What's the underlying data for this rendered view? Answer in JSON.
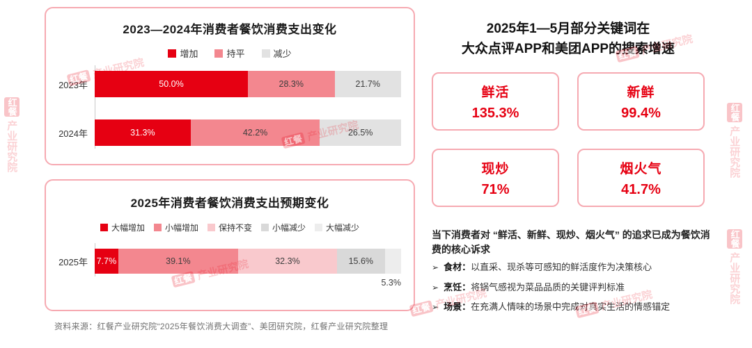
{
  "chart_data": [
    {
      "type": "bar",
      "stacked": true,
      "orientation": "horizontal",
      "title": "2023—2024年消费者餐饮消费支出变化",
      "unit": "%",
      "xlim": [
        0,
        100
      ],
      "legend_position": "top",
      "legend": [
        {
          "label": "增加",
          "color": "#e60012",
          "label_color": "#ffffff"
        },
        {
          "label": "持平",
          "color": "#f3878f",
          "label_color": "#3d3d3d"
        },
        {
          "label": "减少",
          "color": "#e2e2e2",
          "label_color": "#3d3d3d"
        }
      ],
      "rows": [
        {
          "category": "2023年",
          "values": [
            50.0,
            28.3,
            21.7
          ],
          "labels": [
            "50.0%",
            "28.3%",
            "21.7%"
          ]
        },
        {
          "category": "2024年",
          "values": [
            31.3,
            42.2,
            26.5
          ],
          "labels": [
            "31.3%",
            "42.2%",
            "26.5%"
          ]
        }
      ]
    },
    {
      "type": "bar",
      "stacked": true,
      "orientation": "horizontal",
      "title": "2025年消费者餐饮消费支出预期变化",
      "unit": "%",
      "xlim": [
        0,
        100
      ],
      "legend_position": "top",
      "legend": [
        {
          "label": "大幅增加",
          "color": "#e60012",
          "label_color": "#ffffff"
        },
        {
          "label": "小幅增加",
          "color": "#f3878f",
          "label_color": "#3d3d3d"
        },
        {
          "label": "保持不变",
          "color": "#f9c9cd",
          "label_color": "#3d3d3d"
        },
        {
          "label": "小幅减少",
          "color": "#d9d9d9",
          "label_color": "#3d3d3d"
        },
        {
          "label": "大幅减少",
          "color": "#ededed",
          "label_color": "#3d3d3d"
        }
      ],
      "rows": [
        {
          "category": "2025年",
          "values": [
            7.7,
            39.1,
            32.3,
            15.6,
            5.3
          ],
          "labels": [
            "7.7%",
            "39.1%",
            "32.3%",
            "15.6%",
            "5.3%"
          ],
          "label_below": [
            4
          ]
        }
      ]
    }
  ],
  "keywords": {
    "title_line1": "2025年1—5月部分关键词在",
    "title_line2": "大众点评APP和美团APP的搜索增速",
    "items": [
      {
        "label": "鲜活",
        "value": "135.3%"
      },
      {
        "label": "新鲜",
        "value": "99.4%"
      },
      {
        "label": "现炒",
        "value": "71%"
      },
      {
        "label": "烟火气",
        "value": "41.7%"
      }
    ]
  },
  "insight": {
    "summary": "当下消费者对 “鲜活、新鲜、现炒、烟火气” 的追求已成为餐饮消费的核心诉求",
    "bullets": [
      {
        "label": "食材：",
        "text": "以直采、现杀等可感知的鲜活度作为决策核心"
      },
      {
        "label": "烹饪：",
        "text": "将锅气感视为菜品品质的关键评判标准"
      },
      {
        "label": "场景：",
        "text": "在充满人情味的场景中完成对真实生活的情感锚定"
      }
    ]
  },
  "footer": {
    "source": "资料来源：红餐产业研究院“2025年餐饮消费大调查”、美团研究院，红餐产业研究院整理"
  },
  "watermark": {
    "logo": "红餐",
    "text": "产业研究院"
  },
  "colors": {
    "accent": "#e60012",
    "card_border": "#f6a9b1"
  }
}
